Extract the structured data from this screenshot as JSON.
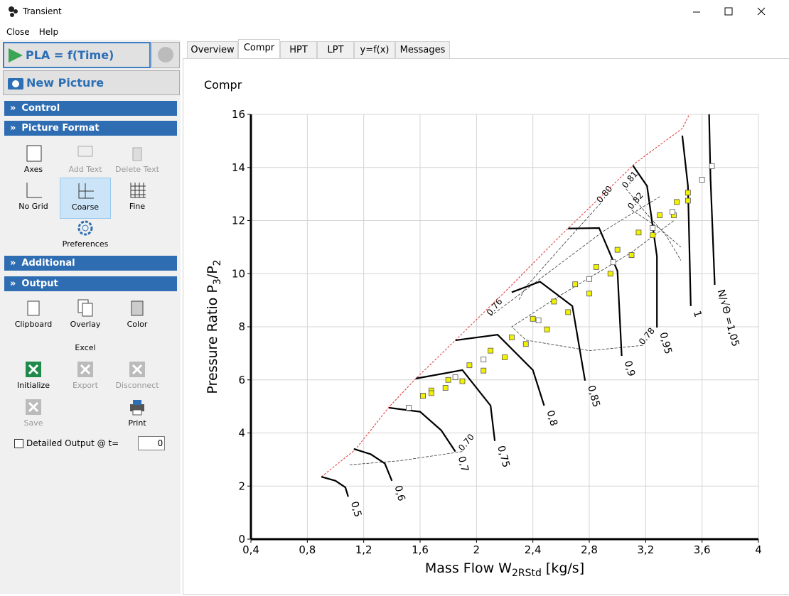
{
  "window": {
    "title": "Transient"
  },
  "menu": [
    "Close",
    "Help"
  ],
  "sidebar": {
    "run_button": "PLA = f(Time)",
    "picture_button": "New Picture",
    "sections": [
      "Control",
      "Picture Format",
      "Additional",
      "Output"
    ],
    "picture_tools": [
      "Axes",
      "Add Text",
      "Delete Text",
      "No Grid",
      "Coarse",
      "Fine",
      "Preferences"
    ],
    "output_tools": [
      "Clipboard",
      "Overlay",
      "Color"
    ],
    "excel_label": "Excel",
    "excel_tools": [
      "Initialize",
      "Export",
      "Disconnect",
      "Save",
      "Print"
    ],
    "detailed_output": "Detailed Output @ t=",
    "detailed_output_value": "0"
  },
  "tabs": [
    "Overview",
    "Compr",
    "HPT",
    "LPT",
    "y=f(x)",
    "Messages"
  ],
  "chart_data": {
    "type": "line",
    "title": "Compr",
    "x_label": [
      "Mass Flow W",
      "2RStd",
      "  [kg/s]"
    ],
    "y_label": [
      "Pressure Ratio P",
      "3",
      "/P",
      "2"
    ],
    "xlim": [
      0.4,
      4
    ],
    "ylim": [
      0,
      16
    ],
    "xticks": [
      {
        "value": 0.4,
        "label": "0,4"
      },
      {
        "value": 0.8,
        "label": "0,8"
      },
      {
        "value": 1.2,
        "label": "1,2"
      },
      {
        "value": 1.6,
        "label": "1,6"
      },
      2,
      {
        "value": 2.4,
        "label": "2,4"
      },
      {
        "value": 2.8,
        "label": "2,8"
      },
      {
        "value": 3.2,
        "label": "3,2"
      },
      {
        "value": 3.6,
        "label": "3,6"
      },
      4
    ],
    "yticks": [
      0,
      2,
      4,
      6,
      8,
      10,
      12,
      14,
      16
    ],
    "grid": true,
    "surge_line": {
      "color": "#e03030",
      "x": [
        0.9,
        1.14,
        1.38,
        1.57,
        1.85,
        2.2,
        2.6,
        3.13,
        3.46,
        3.51
      ],
      "y": [
        2.35,
        3.37,
        4.98,
        6.05,
        7.49,
        9.31,
        11.45,
        14.18,
        15.47,
        16
      ]
    },
    "speed_lines": [
      {
        "name": "0,5",
        "x": [
          0.9,
          1.0,
          1.07,
          1.09
        ],
        "y": [
          2.35,
          2.2,
          1.95,
          1.6
        ]
      },
      {
        "name": "0,6",
        "x": [
          1.13,
          1.25,
          1.35,
          1.4
        ],
        "y": [
          3.4,
          3.2,
          2.85,
          2.2
        ]
      },
      {
        "name": "0,7",
        "x": [
          1.38,
          1.6,
          1.75,
          1.85
        ],
        "y": [
          4.95,
          4.8,
          4.1,
          3.3
        ]
      },
      {
        "name": "0,75",
        "x": [
          1.57,
          1.9,
          2.1,
          2.13
        ],
        "y": [
          6.05,
          6.37,
          5.03,
          3.7
        ]
      },
      {
        "name": "0,8",
        "x": [
          1.85,
          2.15,
          2.4,
          2.48
        ],
        "y": [
          7.49,
          7.7,
          6.37,
          5.03
        ]
      },
      {
        "name": "0,85",
        "x": [
          2.25,
          2.45,
          2.68,
          2.77
        ],
        "y": [
          9.3,
          9.7,
          8.78,
          5.97
        ]
      },
      {
        "name": "0,9",
        "x": [
          2.65,
          2.87,
          3.0,
          3.03
        ],
        "y": [
          11.7,
          11.72,
          10.1,
          6.9
        ]
      },
      {
        "name": "0,95",
        "x": [
          3.11,
          3.21,
          3.28,
          3.28
        ],
        "y": [
          14.07,
          13.3,
          10.65,
          7.97
        ]
      },
      {
        "name": "1",
        "x": [
          3.46,
          3.5,
          3.52
        ],
        "y": [
          15.2,
          13.3,
          8.78
        ]
      },
      {
        "name": "N/√Θ =1,05",
        "x": [
          3.65,
          3.66,
          3.69
        ],
        "y": [
          16,
          13.6,
          9.58
        ]
      }
    ],
    "efficiency_lines": [
      {
        "name": "0.70",
        "x": [
          1.9,
          1.45,
          1.1
        ],
        "y": [
          3.3,
          2.95,
          2.8
        ]
      },
      {
        "name": "0.76",
        "x": [
          2.1,
          2.5,
          2.9,
          3.3
        ],
        "y": [
          8.4,
          10.0,
          11.6,
          12.9
        ]
      },
      {
        "name": "0.78",
        "x": [
          3.18,
          2.8,
          2.35,
          2.25,
          2.6,
          3.1,
          3.4
        ],
        "y": [
          7.3,
          7.1,
          7.5,
          8.0,
          9.2,
          10.8,
          12.0
        ]
      },
      {
        "name": "0.80",
        "x": [
          2.88,
          2.6,
          2.35,
          2.3
        ],
        "y": [
          12.65,
          11.0,
          9.5,
          9.0
        ]
      },
      {
        "name": "0.81",
        "x": [
          3.06,
          3.2,
          3.35,
          3.45
        ],
        "y": [
          13.2,
          12.3,
          11.4,
          10.5
        ]
      },
      {
        "name": "0.82",
        "x": [
          3.1,
          3.3,
          3.45
        ],
        "y": [
          12.4,
          11.7,
          11.0
        ]
      }
    ],
    "series": [
      {
        "color": "#f2f200",
        "x": [
          1.62,
          1.68,
          1.8,
          1.95,
          2.1,
          2.25,
          2.4,
          2.55,
          2.7,
          2.85,
          3.0,
          3.15,
          3.3,
          3.42,
          3.5
        ],
        "values": [
          5.4,
          5.6,
          6.0,
          6.55,
          7.1,
          7.6,
          8.3,
          8.95,
          9.6,
          10.25,
          10.9,
          11.55,
          12.2,
          12.7,
          13.05
        ]
      },
      {
        "color": "#f2f200",
        "x": [
          3.5,
          3.4,
          3.25,
          3.1,
          2.95,
          2.8,
          2.65,
          2.5,
          2.35,
          2.2,
          2.05,
          1.9,
          1.78,
          1.68,
          1.62
        ],
        "values": [
          12.75,
          12.2,
          11.45,
          10.7,
          10.0,
          9.25,
          8.55,
          7.9,
          7.35,
          6.85,
          6.35,
          5.95,
          5.7,
          5.5,
          5.4
        ]
      },
      {
        "color": "#ffffff",
        "x": [
          1.52,
          1.85,
          2.05,
          2.44,
          2.8,
          2.97,
          3.25,
          3.39,
          3.6,
          3.67
        ],
        "values": [
          4.95,
          6.1,
          6.77,
          8.24,
          9.8,
          10.43,
          11.72,
          12.33,
          13.54,
          14.05
        ]
      }
    ]
  }
}
